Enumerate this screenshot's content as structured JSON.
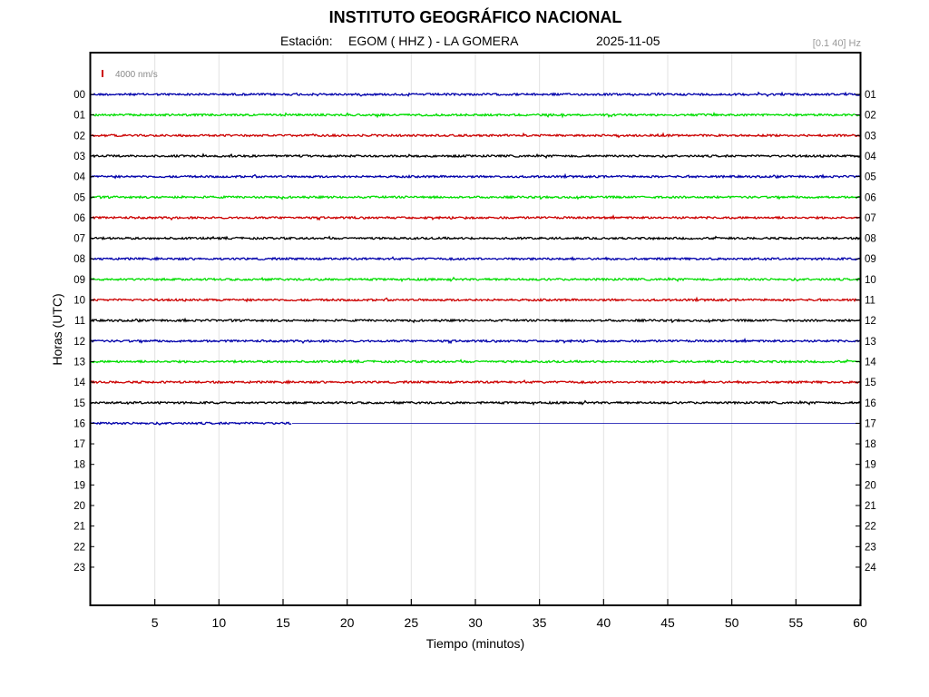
{
  "header": {
    "title": "INSTITUTO GEOGRÁFICO NACIONAL",
    "station_prefix": "Estación:",
    "station": "EGOM ( HHZ ) - LA GOMERA",
    "date": "2025-11-05",
    "filter": "[0.1 40] Hz"
  },
  "chart_data": {
    "type": "line",
    "title": "INSTITUTO GEOGRÁFICO NACIONAL",
    "xlabel": "Tiempo (minutos)",
    "ylabel": "Horas (UTC)",
    "xlim": [
      0,
      60
    ],
    "x_ticks": [
      5,
      10,
      15,
      20,
      25,
      30,
      35,
      40,
      45,
      50,
      55,
      60
    ],
    "grid": true,
    "scale_bar": {
      "label": "4000 nm/s",
      "color": "#cc0000"
    },
    "left_labels": [
      "00",
      "01",
      "02",
      "03",
      "04",
      "05",
      "06",
      "07",
      "08",
      "09",
      "10",
      "11",
      "12",
      "13",
      "14",
      "15",
      "16",
      "17",
      "18",
      "19",
      "20",
      "21",
      "22",
      "23"
    ],
    "right_labels": [
      "01",
      "02",
      "03",
      "04",
      "05",
      "06",
      "07",
      "08",
      "09",
      "10",
      "11",
      "12",
      "13",
      "14",
      "15",
      "16",
      "17",
      "18",
      "19",
      "20",
      "21",
      "22",
      "23",
      "24"
    ],
    "color_cycle": [
      "#0000aa",
      "#00dd00",
      "#cc0000",
      "#000000"
    ],
    "traces": [
      {
        "hour": 0,
        "end_minute": 60
      },
      {
        "hour": 1,
        "end_minute": 60
      },
      {
        "hour": 2,
        "end_minute": 60
      },
      {
        "hour": 3,
        "end_minute": 60
      },
      {
        "hour": 4,
        "end_minute": 60
      },
      {
        "hour": 5,
        "end_minute": 60
      },
      {
        "hour": 6,
        "end_minute": 60
      },
      {
        "hour": 7,
        "end_minute": 60
      },
      {
        "hour": 8,
        "end_minute": 60
      },
      {
        "hour": 9,
        "end_minute": 60
      },
      {
        "hour": 10,
        "end_minute": 60
      },
      {
        "hour": 11,
        "end_minute": 60
      },
      {
        "hour": 12,
        "end_minute": 60
      },
      {
        "hour": 13,
        "end_minute": 60
      },
      {
        "hour": 14,
        "end_minute": 60
      },
      {
        "hour": 15,
        "end_minute": 60
      },
      {
        "hour": 16,
        "end_minute": 15.7
      }
    ]
  }
}
